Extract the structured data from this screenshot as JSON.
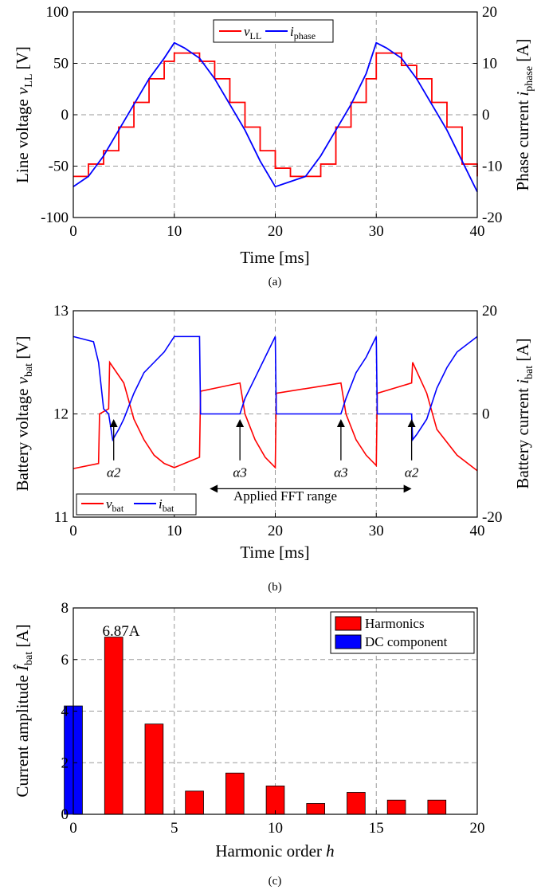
{
  "chart_data": [
    {
      "type": "line",
      "caption": "(a)",
      "xlabel": "Time [ms]",
      "ylabel_left": "Line voltage v_LL [V]",
      "ylabel_right": "Phase current i_phase [A]",
      "xlim": [
        0,
        40
      ],
      "ylim_left": [
        -100,
        100
      ],
      "ylim_right": [
        -20,
        20
      ],
      "xticks": [
        "0",
        "10",
        "20",
        "30",
        "40"
      ],
      "yticks_left": [
        "-100",
        "-50",
        "0",
        "50",
        "100"
      ],
      "yticks_right": [
        "-20",
        "-10",
        "0",
        "10",
        "20"
      ],
      "grid": true,
      "legend_position": "top-center",
      "series": [
        {
          "name": "v_LL",
          "axis": "left",
          "color": "#ff0000",
          "x": [
            0,
            1.5,
            3,
            4.5,
            6,
            7.5,
            9,
            10,
            11,
            12.5,
            14,
            15.5,
            17,
            18.5,
            20,
            21.5,
            23,
            24.5,
            26,
            27.5,
            29,
            30,
            31,
            32.5,
            34,
            35.5,
            37,
            38.5,
            40
          ],
          "y": [
            -60,
            -48,
            -35,
            -12,
            12,
            35,
            52,
            60,
            60,
            52,
            35,
            12,
            -12,
            -35,
            -52,
            -60,
            -60,
            -48,
            -12,
            12,
            35,
            60,
            60,
            48,
            35,
            12,
            -12,
            -48,
            -60
          ]
        },
        {
          "name": "i_phase",
          "axis": "right",
          "color": "#0000ff",
          "x": [
            0,
            1.5,
            3,
            4.5,
            6,
            7.5,
            9,
            10,
            11,
            12.5,
            14,
            15.5,
            17,
            18.5,
            20,
            21.5,
            23,
            24.5,
            26,
            27.5,
            29,
            30,
            31,
            32.5,
            34,
            35.5,
            37,
            38.5,
            40
          ],
          "y": [
            -14,
            -12,
            -8,
            -3,
            2,
            7,
            11,
            14,
            13,
            11,
            7,
            2,
            -3,
            -9,
            -14,
            -13,
            -12,
            -8,
            -3,
            2,
            8,
            14,
            13,
            11,
            7,
            2,
            -3,
            -9,
            -15
          ]
        }
      ],
      "legend": [
        "v_LL",
        "i_phase"
      ]
    },
    {
      "type": "line",
      "caption": "(b)",
      "xlabel": "Time [ms]",
      "ylabel_left": "Battery voltage v_bat [V]",
      "ylabel_right": "Battery current i_bat [A]",
      "xlim": [
        0,
        40
      ],
      "ylim_left": [
        11,
        13
      ],
      "ylim_right": [
        -20,
        20
      ],
      "xticks": [
        "0",
        "10",
        "20",
        "30",
        "40"
      ],
      "yticks_left": [
        "11",
        "12",
        "13"
      ],
      "yticks_right": [
        "-20",
        "0",
        "20"
      ],
      "grid": true,
      "legend_position": "bottom-left",
      "series": [
        {
          "name": "v_bat",
          "axis": "left",
          "color": "#ff0000",
          "x": [
            0,
            2.5,
            2.6,
            3.5,
            3.6,
            5,
            6,
            7,
            8,
            9,
            10,
            12.5,
            12.6,
            16.5,
            17,
            18,
            19,
            20,
            20.1,
            26.5,
            27,
            28,
            29,
            30,
            30.1,
            33.5,
            33.6,
            35,
            36,
            38,
            40
          ],
          "y": [
            11.47,
            11.52,
            12.0,
            12.05,
            12.5,
            12.3,
            11.95,
            11.75,
            11.6,
            11.52,
            11.48,
            11.58,
            12.22,
            12.3,
            12.0,
            11.75,
            11.58,
            11.48,
            12.2,
            12.3,
            12.0,
            11.75,
            11.6,
            11.5,
            12.2,
            12.3,
            12.5,
            12.2,
            11.85,
            11.6,
            11.45
          ]
        },
        {
          "name": "i_bat",
          "axis": "right",
          "color": "#0000ff",
          "x": [
            0,
            2,
            2.5,
            3,
            3.5,
            3.9,
            4.5,
            5,
            6,
            7,
            8,
            9,
            10,
            12.5,
            12.6,
            16.5,
            17,
            18,
            19,
            20,
            20.1,
            26.5,
            27,
            28,
            29,
            30,
            30.1,
            33.5,
            33.6,
            34,
            35,
            36,
            37,
            38,
            40
          ],
          "y": [
            15,
            14,
            10,
            1,
            0,
            -5,
            -3,
            -1,
            4,
            8,
            10,
            12,
            15,
            15,
            0,
            0,
            3,
            7,
            11,
            15,
            0,
            0,
            3,
            8,
            11,
            15,
            0,
            0,
            -5,
            -4,
            -1,
            5,
            9,
            12,
            15
          ]
        }
      ],
      "legend": [
        "v_bat",
        "i_bat"
      ],
      "annotations": [
        {
          "text": "α2",
          "x": 4
        },
        {
          "text": "α3",
          "x": 16.5
        },
        {
          "text": "α3",
          "x": 26.5
        },
        {
          "text": "α2",
          "x": 33.5
        },
        {
          "text": "Applied FFT range",
          "x_from": 13.5,
          "x_to": 33.5
        }
      ]
    },
    {
      "type": "bar",
      "caption": "(c)",
      "xlabel": "Harmonic order h",
      "ylabel": "Current amplitude Î_bat [A]",
      "xlim": [
        0,
        20
      ],
      "ylim": [
        0,
        8
      ],
      "xticks": [
        "0",
        "5",
        "10",
        "15",
        "20"
      ],
      "yticks": [
        "0",
        "2",
        "4",
        "6",
        "8"
      ],
      "grid": true,
      "legend_position": "top-right",
      "series": [
        {
          "name": "Harmonics",
          "color": "#ff0000",
          "x": [
            2,
            4,
            6,
            8,
            10,
            12,
            14,
            16,
            18
          ],
          "values": [
            6.87,
            3.5,
            0.9,
            1.6,
            1.1,
            0.42,
            0.85,
            0.55,
            0.55
          ]
        },
        {
          "name": "DC component",
          "color": "#0000ff",
          "x": [
            0
          ],
          "values": [
            4.2
          ]
        }
      ],
      "value_label": "6.87A"
    }
  ]
}
